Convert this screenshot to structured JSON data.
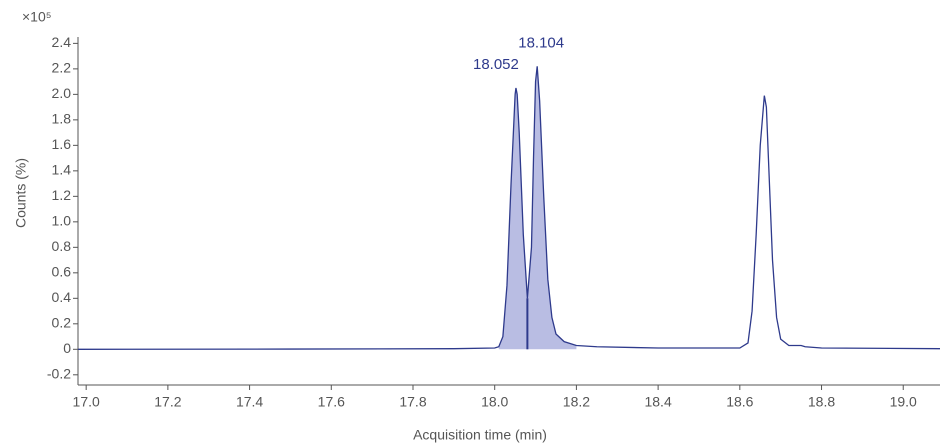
{
  "chart_data": {
    "type": "line",
    "y_multiplier": "×10⁵",
    "x_label": "Acquisition time (min)",
    "y_label": "Counts (%)",
    "x": [
      16.98,
      17.5,
      17.9,
      18.0,
      18.01,
      18.02,
      18.03,
      18.04,
      18.05,
      18.052,
      18.055,
      18.06,
      18.07,
      18.08,
      18.09,
      18.095,
      18.1,
      18.104,
      18.11,
      18.12,
      18.13,
      18.14,
      18.15,
      18.17,
      18.2,
      18.25,
      18.4,
      18.6,
      18.62,
      18.63,
      18.64,
      18.65,
      18.66,
      18.665,
      18.67,
      18.68,
      18.69,
      18.7,
      18.72,
      18.75,
      18.76,
      18.8,
      19.09
    ],
    "series": [
      {
        "color": "#2e3a8c",
        "values": [
          0,
          0.002,
          0.005,
          0.01,
          0.02,
          0.1,
          0.5,
          1.3,
          2.0,
          2.05,
          2.0,
          1.7,
          0.9,
          0.4,
          0.8,
          1.5,
          2.1,
          2.22,
          1.95,
          1.2,
          0.55,
          0.25,
          0.12,
          0.06,
          0.03,
          0.02,
          0.01,
          0.01,
          0.05,
          0.3,
          0.9,
          1.6,
          1.99,
          1.9,
          1.5,
          0.7,
          0.25,
          0.08,
          0.03,
          0.03,
          0.02,
          0.01,
          0.005
        ]
      }
    ],
    "integration": {
      "start": 18.01,
      "split": 18.08,
      "end": 18.2,
      "color": "#b9bde3"
    },
    "annotations": [
      {
        "x": 18.052,
        "y": 2.05
      },
      {
        "x": 18.104,
        "y": 2.22
      }
    ],
    "xlim": [
      16.98,
      19.09
    ],
    "xticks": [
      {
        "value": 17,
        "label": "17.0"
      },
      17.2,
      17.4,
      17.6,
      17.8,
      {
        "value": 18,
        "label": "18.0"
      },
      18.2,
      18.4,
      18.6,
      18.8,
      {
        "value": 19,
        "label": "19.0"
      }
    ],
    "ylim": [
      -0.28,
      2.45
    ],
    "yticks": [
      -0.2,
      0,
      0.2,
      0.4,
      0.6,
      0.8,
      {
        "value": 1,
        "label": "1.0"
      },
      1.2,
      1.4,
      1.6,
      1.8,
      {
        "value": 2,
        "label": "2.0"
      },
      2.2,
      2.4
    ]
  }
}
